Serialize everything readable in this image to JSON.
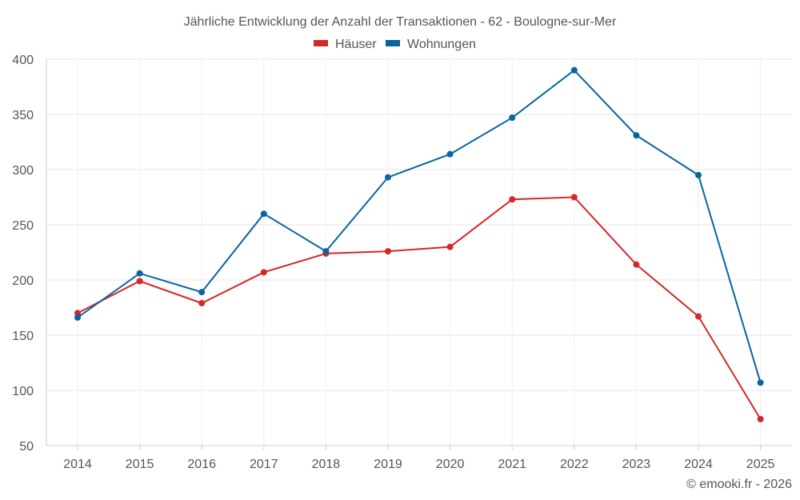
{
  "chart_data": {
    "type": "line",
    "title": "Jährliche Entwicklung der Anzahl der Transaktionen - 62 - Boulogne-sur-Mer",
    "xlabel": "",
    "ylabel": "",
    "categories": [
      "2014",
      "2015",
      "2016",
      "2017",
      "2018",
      "2019",
      "2020",
      "2021",
      "2022",
      "2023",
      "2024",
      "2025"
    ],
    "ylim": [
      50,
      400
    ],
    "yticks": [
      50,
      100,
      150,
      200,
      250,
      300,
      350,
      400
    ],
    "grid": true,
    "legend_position": "top-center",
    "series": [
      {
        "name": "Häuser",
        "color": "#d62728",
        "values": [
          170,
          199,
          179,
          207,
          224,
          226,
          230,
          273,
          275,
          214,
          167,
          74
        ]
      },
      {
        "name": "Wohnungen",
        "color": "#08649e",
        "values": [
          166,
          206,
          189,
          260,
          226,
          293,
          314,
          347,
          390,
          331,
          295,
          107
        ]
      }
    ]
  },
  "credit": "© emooki.fr - 2026"
}
